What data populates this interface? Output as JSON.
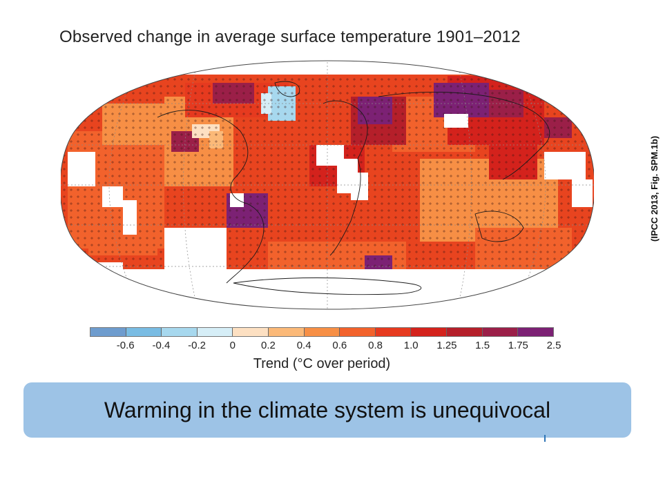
{
  "title": "Observed change in average surface temperature 1901–2012",
  "credit": "(IPCC 2013, Fig. SPM.1b)",
  "colorbar": {
    "label": "Trend (°C over period)",
    "colors": [
      "#6e9cce",
      "#79bce3",
      "#a7d8ee",
      "#d6eef7",
      "#fde0c2",
      "#fbb978",
      "#f78f45",
      "#f2622c",
      "#e63a1f",
      "#d4221c",
      "#b51f2a",
      "#9b1f48",
      "#7c2174"
    ],
    "ticks": [
      "-0.6",
      "-0.4",
      "-0.2",
      "0",
      "0.2",
      "0.4",
      "0.6",
      "0.8",
      "1.0",
      "1.25",
      "1.5",
      "1.75",
      "2.5"
    ]
  },
  "banner": {
    "text": "Warming in the climate system is unequivocal",
    "background": "#9dc3e6"
  },
  "accent": "#2e75b6"
}
